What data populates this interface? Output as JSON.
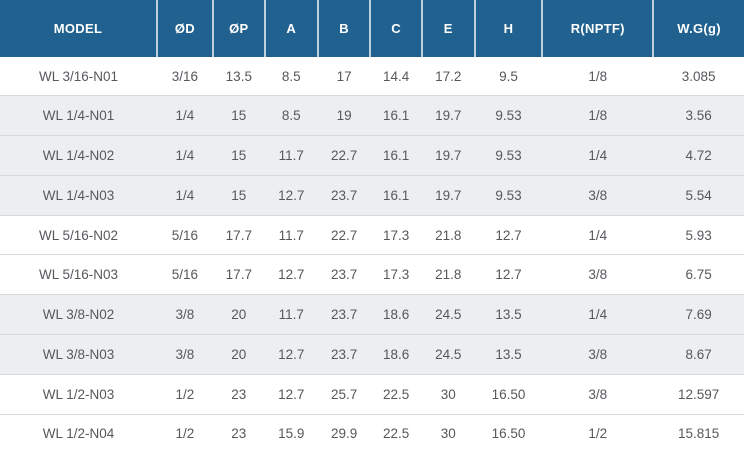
{
  "chart_data": {
    "type": "table",
    "columns": [
      "MODEL",
      "ØD",
      "ØP",
      "A",
      "B",
      "C",
      "E",
      "H",
      "R(NPTF)",
      "W.G(g)"
    ],
    "rows": [
      [
        "WL 3/16-N01",
        "3/16",
        "13.5",
        "8.5",
        "17",
        "14.4",
        "17.2",
        "9.5",
        "1/8",
        "3.085"
      ],
      [
        "WL 1/4-N01",
        "1/4",
        "15",
        "8.5",
        "19",
        "16.1",
        "19.7",
        "9.53",
        "1/8",
        "3.56"
      ],
      [
        "WL 1/4-N02",
        "1/4",
        "15",
        "11.7",
        "22.7",
        "16.1",
        "19.7",
        "9.53",
        "1/4",
        "4.72"
      ],
      [
        "WL 1/4-N03",
        "1/4",
        "15",
        "12.7",
        "23.7",
        "16.1",
        "19.7",
        "9.53",
        "3/8",
        "5.54"
      ],
      [
        "WL 5/16-N02",
        "5/16",
        "17.7",
        "11.7",
        "22.7",
        "17.3",
        "21.8",
        "12.7",
        "1/4",
        "5.93"
      ],
      [
        "WL 5/16-N03",
        "5/16",
        "17.7",
        "12.7",
        "23.7",
        "17.3",
        "21.8",
        "12.7",
        "3/8",
        "6.75"
      ],
      [
        "WL 3/8-N02",
        "3/8",
        "20",
        "11.7",
        "23.7",
        "18.6",
        "24.5",
        "13.5",
        "1/4",
        "7.69"
      ],
      [
        "WL 3/8-N03",
        "3/8",
        "20",
        "12.7",
        "23.7",
        "18.6",
        "24.5",
        "13.5",
        "3/8",
        "8.67"
      ],
      [
        "WL 1/2-N03",
        "1/2",
        "23",
        "12.7",
        "25.7",
        "22.5",
        "30",
        "16.50",
        "3/8",
        "12.597"
      ],
      [
        "WL 1/2-N04",
        "1/2",
        "23",
        "15.9",
        "29.9",
        "22.5",
        "30",
        "16.50",
        "1/2",
        "15.815"
      ]
    ],
    "shaded_row_indexes": [
      1,
      2,
      3,
      6,
      7
    ],
    "legend_position": "none",
    "grid": "horizontal-dividers"
  },
  "colors": {
    "header_bg": "#20618f",
    "header_text": "#ffffff",
    "row_shaded_bg": "#edeef0",
    "row_bg": "#ffffff",
    "divider": "#d8d9da",
    "cell_text": "#56585c"
  }
}
